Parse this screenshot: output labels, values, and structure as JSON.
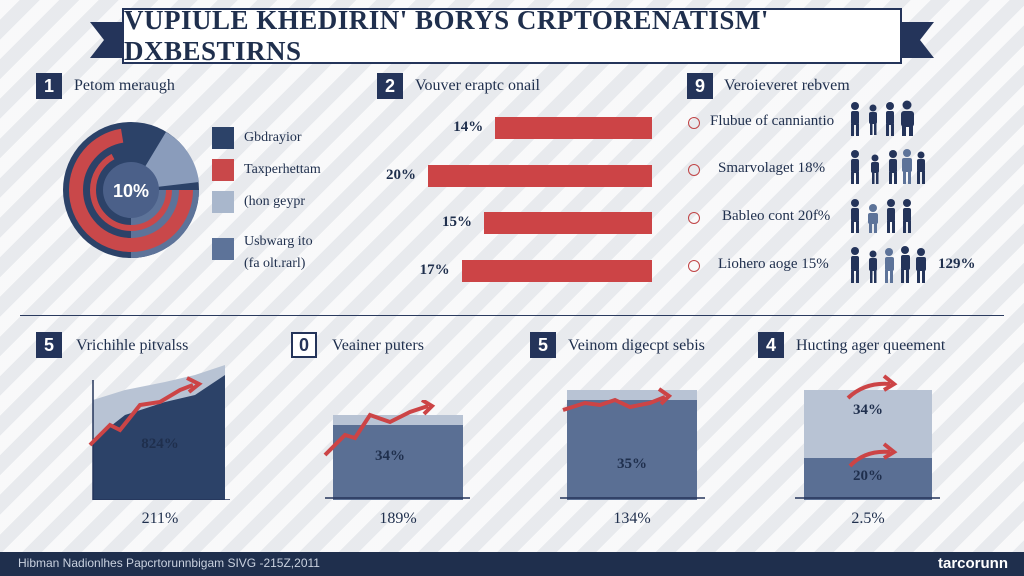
{
  "banner": {
    "title": "VUPIULE KHEDIRIN' BORYS CRPTORENATISM' DXBESTIRNS"
  },
  "sections": {
    "s1": {
      "num": "1",
      "title": "Petom meraugh"
    },
    "s2": {
      "num": "2",
      "title": "Vouver eraptc onail"
    },
    "s3": {
      "num": "9",
      "title": "Veroieveret rebvem"
    },
    "s5a": {
      "num": "5",
      "title": "Vrichihle pitvalss"
    },
    "s0": {
      "num": "0",
      "title": "Veainer puters"
    },
    "s5b": {
      "num": "5",
      "title": "Veinom digecpt sebis"
    },
    "s4": {
      "num": "4",
      "title": "Hucting ager queement"
    }
  },
  "donut": {
    "center_label": "10%",
    "colors": {
      "navy": "#2c4268",
      "red": "#c9484a",
      "slate": "#5d7399",
      "light": "#a9b7cc"
    }
  },
  "legend": [
    {
      "label": "Gbdrayior",
      "color": "#2c4268"
    },
    {
      "label": "Taxperhettam",
      "color": "#c9484a"
    },
    {
      "label": "(hon geypr",
      "color": "#a9b7cc"
    },
    {
      "label": "Usbwarg ito",
      "label2": "(fa olt.rarl)",
      "color": "#5d7399"
    }
  ],
  "hbars": [
    {
      "label": "14%",
      "value": 14
    },
    {
      "label": "20%",
      "value": 20
    },
    {
      "label": "15%",
      "value": 15
    },
    {
      "label": "17%",
      "value": 17
    }
  ],
  "people": [
    {
      "label": "Flubue of canniantio",
      "extra": ""
    },
    {
      "label": "Smarvolaget 18%",
      "extra": ""
    },
    {
      "label": "Bableo cont 20f%",
      "extra": ""
    },
    {
      "label": "Liohero aoge 15%",
      "extra": "129%"
    }
  ],
  "panels": [
    {
      "value_label": "824%",
      "bottom_label": "211%",
      "fill": 0.88
    },
    {
      "value_label": "34%",
      "bottom_label": "189%",
      "fill": 0.65
    },
    {
      "value_label": "35%",
      "bottom_label": "134%",
      "fill": 0.95
    },
    {
      "value_label": "34%",
      "value_label2": "20%",
      "bottom_label": "2.5%",
      "fill": 0.35
    }
  ],
  "footer": {
    "text": "Hibman Nadionlhes Papcrtorunnbigam SIVG -215Z,2011",
    "brand": "tarcorunn"
  },
  "colors": {
    "navy": "#24345a",
    "red": "#cc4446",
    "light_panel": "#b8c3d4",
    "mid_panel": "#5a6f94"
  }
}
